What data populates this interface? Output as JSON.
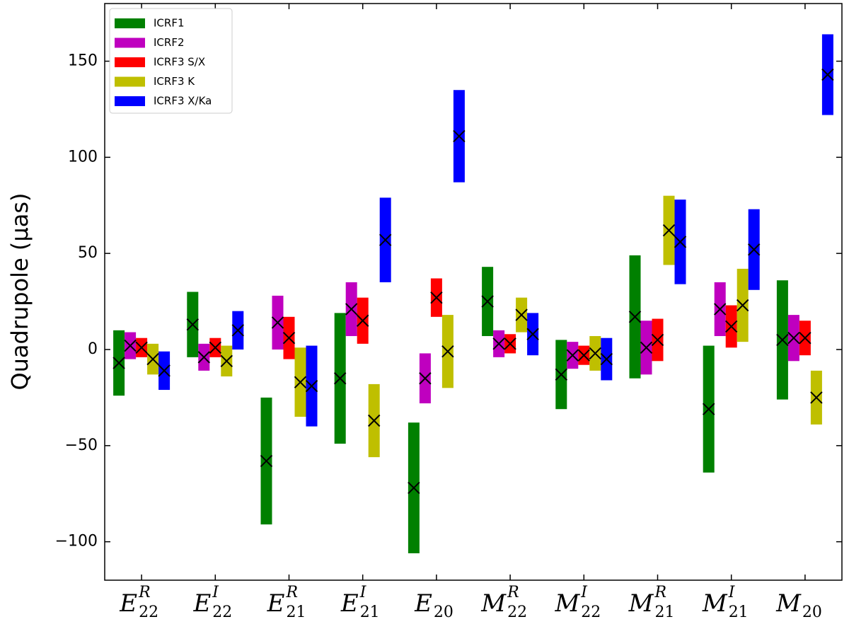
{
  "chart_data": {
    "type": "errorbar",
    "ylabel": "Quadrupole (μas)",
    "categories": [
      {
        "main": "E",
        "sup": "R",
        "sub": "22"
      },
      {
        "main": "E",
        "sup": "I",
        "sub": "22"
      },
      {
        "main": "E",
        "sup": "R",
        "sub": "21"
      },
      {
        "main": "E",
        "sup": "I",
        "sub": "21"
      },
      {
        "main": "E",
        "sub": "20"
      },
      {
        "main": "M",
        "sup": "R",
        "sub": "22"
      },
      {
        "main": "M",
        "sup": "I",
        "sub": "22"
      },
      {
        "main": "M",
        "sup": "R",
        "sub": "21"
      },
      {
        "main": "M",
        "sup": "I",
        "sub": "21"
      },
      {
        "main": "M",
        "sub": "20"
      }
    ],
    "series": [
      {
        "name": "ICRF1",
        "color": "#008000",
        "values": [
          -7,
          13,
          -58,
          -15,
          -72,
          25,
          -13,
          17,
          -31,
          5
        ],
        "errors": [
          17,
          17,
          33,
          34,
          34,
          18,
          18,
          32,
          33,
          31
        ]
      },
      {
        "name": "ICRF2",
        "color": "#bf00bf",
        "values": [
          2,
          -4,
          14,
          21,
          -15,
          3,
          -3,
          1,
          21,
          6
        ],
        "errors": [
          7,
          7,
          14,
          14,
          13,
          7,
          7,
          14,
          14,
          12
        ]
      },
      {
        "name": "ICRF3 S/X",
        "color": "#ff0000",
        "values": [
          1,
          1,
          6,
          15,
          27,
          3,
          -3,
          5,
          12,
          6
        ],
        "errors": [
          5,
          5,
          11,
          12,
          10,
          5,
          5,
          11,
          11,
          9
        ]
      },
      {
        "name": "ICRF3 K",
        "color": "#bfbf00",
        "values": [
          -5,
          -6,
          -17,
          -37,
          -1,
          18,
          -2,
          62,
          23,
          -25
        ],
        "errors": [
          8,
          8,
          18,
          19,
          19,
          9,
          9,
          18,
          19,
          14
        ]
      },
      {
        "name": "ICRF3 X/Ka",
        "color": "#0000ff",
        "values": [
          -11,
          10,
          -19,
          57,
          111,
          8,
          -5,
          56,
          52,
          143
        ],
        "errors": [
          10,
          10,
          21,
          22,
          24,
          11,
          11,
          22,
          21,
          21
        ]
      }
    ],
    "ylim": [
      -120,
      180
    ],
    "yticks": [
      {
        "value": -100,
        "label": "−100"
      },
      {
        "value": -50,
        "label": "−50"
      },
      0,
      50,
      100,
      150
    ],
    "legend": "upper left"
  }
}
